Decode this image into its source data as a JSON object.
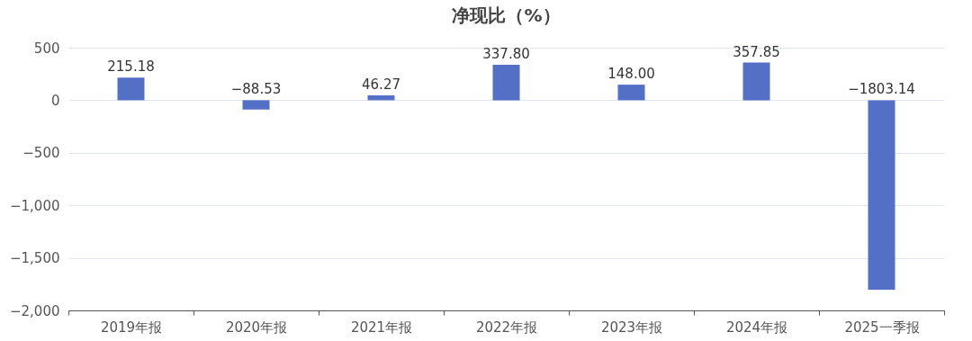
{
  "chart_data": {
    "type": "bar",
    "title": "净现比（%）",
    "categories": [
      "2019年报",
      "2020年报",
      "2021年报",
      "2022年报",
      "2023年报",
      "2024年报",
      "2025一季报"
    ],
    "series": [
      {
        "color": "#5470c6",
        "values": [
          215.18,
          -88.53,
          46.27,
          337.8,
          148,
          357.85,
          -1803.14
        ],
        "value_labels": [
          "215.18",
          "−88.53",
          "46.27",
          "337.80",
          "148.00",
          "357.85",
          "−1803.14"
        ]
      }
    ],
    "ylim": [
      -2000,
      500
    ],
    "yticks": [
      {
        "value": -2000,
        "label": "−2,000"
      },
      {
        "value": -1500,
        "label": "−1,500"
      },
      {
        "value": -1000,
        "label": "−1,000"
      },
      {
        "value": -500,
        "label": "−500"
      },
      0,
      500
    ],
    "grid": "y"
  }
}
